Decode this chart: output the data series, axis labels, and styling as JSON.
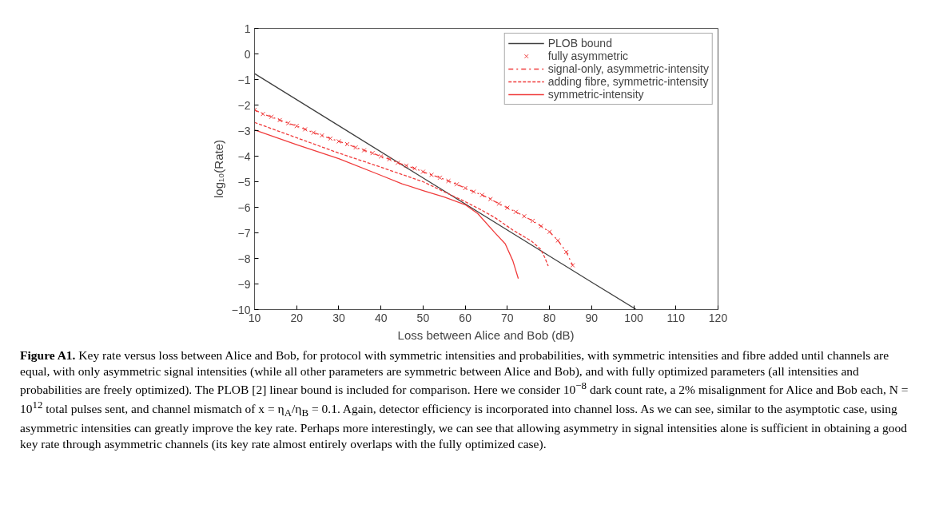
{
  "chart_data": {
    "type": "line",
    "xlabel": "Loss between Alice and Bob (dB)",
    "ylabel": "log₁₀(Rate)",
    "xlim": [
      10,
      120
    ],
    "ylim": [
      -10,
      1
    ],
    "xticks": [
      10,
      20,
      30,
      40,
      50,
      60,
      70,
      80,
      90,
      100,
      110,
      120
    ],
    "yticks": [
      -10,
      -9,
      -8,
      -7,
      -6,
      -5,
      -4,
      -3,
      -2,
      -1,
      0,
      1
    ],
    "grid": false,
    "legend": "top right",
    "series": [
      {
        "name": "PLOB bound",
        "color": "#404040",
        "line_style": "solid",
        "marker": "none",
        "x": [
          10,
          30,
          50,
          70,
          90,
          100.6
        ],
        "values": [
          -0.77,
          -2.81,
          -4.85,
          -6.89,
          -8.93,
          -10
        ]
      },
      {
        "name": "fully asymmetric",
        "type": "scatter",
        "color": "#f03c3c",
        "marker": "cross",
        "x": [
          10,
          12,
          14,
          16,
          18,
          20,
          22,
          24,
          26,
          28,
          30,
          32,
          34,
          36,
          38,
          40,
          42,
          44,
          46,
          48,
          50,
          52,
          54,
          56,
          58,
          60,
          62,
          64,
          66,
          68,
          70,
          72,
          74,
          76,
          78,
          80,
          82,
          84,
          85.5
        ],
        "values": [
          -2.19,
          -2.35,
          -2.46,
          -2.59,
          -2.71,
          -2.82,
          -2.95,
          -3.08,
          -3.19,
          -3.31,
          -3.42,
          -3.53,
          -3.66,
          -3.77,
          -3.88,
          -4.01,
          -4.12,
          -4.26,
          -4.37,
          -4.48,
          -4.61,
          -4.73,
          -4.84,
          -4.97,
          -5.1,
          -5.25,
          -5.39,
          -5.52,
          -5.68,
          -5.86,
          -6.02,
          -6.18,
          -6.35,
          -6.53,
          -6.74,
          -6.96,
          -7.3,
          -7.75,
          -8.27
        ]
      },
      {
        "name": "signal-only, asymmetric-intensity",
        "color": "#f03c3c",
        "line_style": "dashdot",
        "marker": "none",
        "x": [
          10,
          12,
          14,
          16,
          18,
          20,
          22,
          24,
          26,
          28,
          30,
          32,
          34,
          36,
          38,
          40,
          42,
          44,
          46,
          48,
          50,
          52,
          54,
          56,
          58,
          60,
          62,
          64,
          66,
          68,
          70,
          72,
          74,
          76,
          78,
          80,
          82,
          84,
          85.5
        ],
        "values": [
          -2.19,
          -2.35,
          -2.46,
          -2.59,
          -2.71,
          -2.82,
          -2.95,
          -3.08,
          -3.19,
          -3.31,
          -3.42,
          -3.53,
          -3.66,
          -3.77,
          -3.88,
          -4.01,
          -4.12,
          -4.26,
          -4.37,
          -4.48,
          -4.61,
          -4.73,
          -4.84,
          -4.97,
          -5.1,
          -5.25,
          -5.39,
          -5.52,
          -5.68,
          -5.86,
          -6.02,
          -6.18,
          -6.35,
          -6.53,
          -6.74,
          -6.96,
          -7.3,
          -7.75,
          -8.27
        ]
      },
      {
        "name": "adding fibre, symmetric-intensity",
        "color": "#f03c3c",
        "line_style": "dashed",
        "marker": "none",
        "x": [
          10,
          20,
          30,
          40,
          44,
          50,
          57,
          60,
          64,
          67,
          71.3,
          75.7,
          77.9,
          78.9,
          79.7
        ],
        "values": [
          -2.68,
          -3.28,
          -3.88,
          -4.43,
          -4.66,
          -5.0,
          -5.55,
          -5.78,
          -6.12,
          -6.4,
          -6.89,
          -7.32,
          -7.64,
          -7.97,
          -8.3
        ]
      },
      {
        "name": "symmetric-intensity",
        "color": "#f03c3c",
        "line_style": "solid",
        "marker": "none",
        "x": [
          10,
          20,
          30,
          40,
          45,
          50,
          55,
          60,
          63,
          67,
          69.5,
          71.3,
          72.6
        ],
        "values": [
          -2.97,
          -3.55,
          -4.1,
          -4.75,
          -5.08,
          -5.35,
          -5.6,
          -5.9,
          -6.25,
          -6.99,
          -7.43,
          -8.09,
          -8.79
        ]
      }
    ],
    "annotations": [
      "Figure A1. Key rate versus loss between Alice and Bob, for protocol with symmetric intensities and probabilities, with symmetric intensities and fibre added until channels are equal, with only asymmetric signal intensities (while all other parameters are symmetric between Alice and Bob), and with fully optimized parameters (all intensities and probabilities are freely optimized). The PLOB [2] linear bound is included for comparison. Here we consider 10$^{−8}$ dark count rate, a 2% misalignment for Alice and Bob each, N = 10$^{12}$ total pulses sent, and channel mismatch of x = η$_{A}$/η$_{B}$ = 0.1. Again, detector efficiency is incorporated into channel loss. As we can see, similar to the asymptotic case, using asymmetric intensities can greatly improve the key rate. Perhaps more interestingly, we can see that allowing asymmetry in signal intensities alone is sufficient in obtaining a good key rate through asymmetric channels (its key rate almost entirely overlaps with the fully optimized case)."
    ]
  }
}
